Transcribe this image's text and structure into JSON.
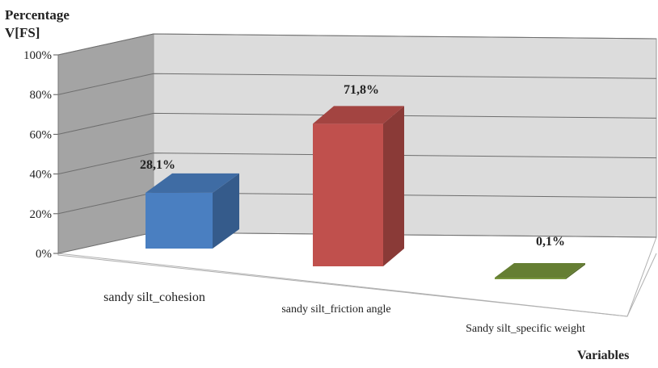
{
  "chart_data": {
    "type": "bar",
    "ylabel": "Percentage V[FS]",
    "ylabel_lines": [
      "Percentage",
      "V[FS]"
    ],
    "xlabel": "Variables",
    "categories": [
      "sandy silt_cohesion",
      "sandy silt_friction angle",
      "Sandy silt_specific weight"
    ],
    "values": [
      28.1,
      71.8,
      0.1
    ],
    "data_labels": [
      "28,1%",
      "71,8%",
      "0,1%"
    ],
    "colors": [
      "#4a7fc1",
      "#c0504d",
      "#77943c"
    ],
    "y_ticks": [
      "0%",
      "20%",
      "40%",
      "60%",
      "80%",
      "100%"
    ],
    "ylim": [
      0,
      100
    ],
    "grid": true,
    "legend": "none"
  }
}
